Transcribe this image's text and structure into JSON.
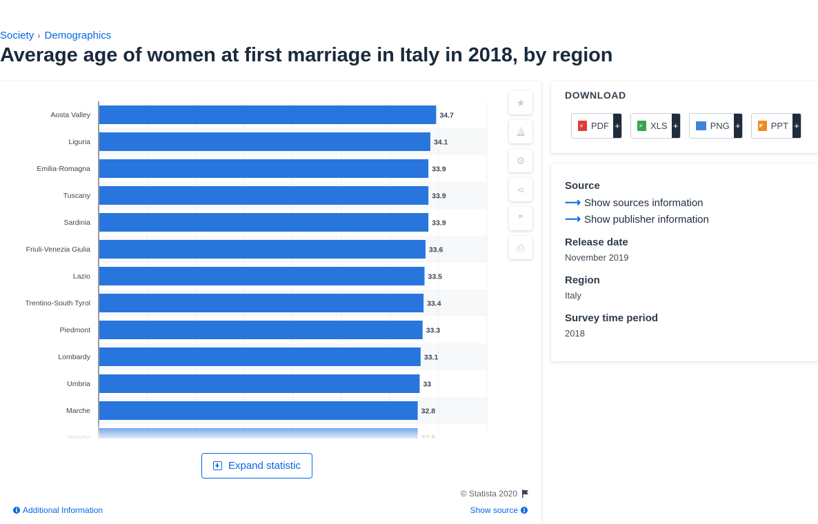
{
  "breadcrumb": {
    "items": [
      "Society",
      "Demographics"
    ],
    "separator": "›"
  },
  "page_title": "Average age of women at first marriage in Italy in 2018, by region",
  "chart_data": {
    "type": "bar",
    "orientation": "horizontal",
    "categories": [
      "Aosta Valley",
      "Liguria",
      "Emilia-Romagna",
      "Tuscany",
      "Sardinia",
      "Friuli-Venezia Giulia",
      "Lazio",
      "Trentino-South Tyrol",
      "Piedmont",
      "Lombardy",
      "Umbria",
      "Marche",
      "Veneto"
    ],
    "values": [
      34.7,
      34.1,
      33.9,
      33.9,
      33.9,
      33.6,
      33.5,
      33.4,
      33.3,
      33.1,
      33,
      32.8,
      32.8
    ],
    "xlim": [
      0,
      40
    ],
    "grid": true,
    "bar_color": "#2876dd"
  },
  "tools": [
    {
      "name": "star-icon",
      "glyph": "★"
    },
    {
      "name": "bell-icon",
      "glyph": "🔔"
    },
    {
      "name": "gear-icon",
      "glyph": "⚙"
    },
    {
      "name": "share-icon",
      "glyph": "⋖"
    },
    {
      "name": "quote-icon",
      "glyph": "❞"
    },
    {
      "name": "print-icon",
      "glyph": "⎙"
    }
  ],
  "expand_label": "Expand statistic",
  "copyright": "© Statista 2020",
  "additional_info": "Additional Information",
  "show_source": "Show source",
  "download": {
    "title": "DOWNLOAD",
    "buttons": [
      {
        "label": "PDF",
        "plus": "+",
        "icon_color": "#e23b36"
      },
      {
        "label": "XLS",
        "plus": "+",
        "icon_color": "#3aa351"
      },
      {
        "label": "PNG",
        "plus": "+",
        "icon_color": "#3c84d8"
      },
      {
        "label": "PPT",
        "plus": "+",
        "icon_color": "#f08a24"
      }
    ]
  },
  "info": {
    "source_label": "Source",
    "show_sources": "Show sources information",
    "show_publisher": "Show publisher information",
    "release_label": "Release date",
    "release_value": "November 2019",
    "region_label": "Region",
    "region_value": "Italy",
    "period_label": "Survey time period",
    "period_value": "2018"
  }
}
